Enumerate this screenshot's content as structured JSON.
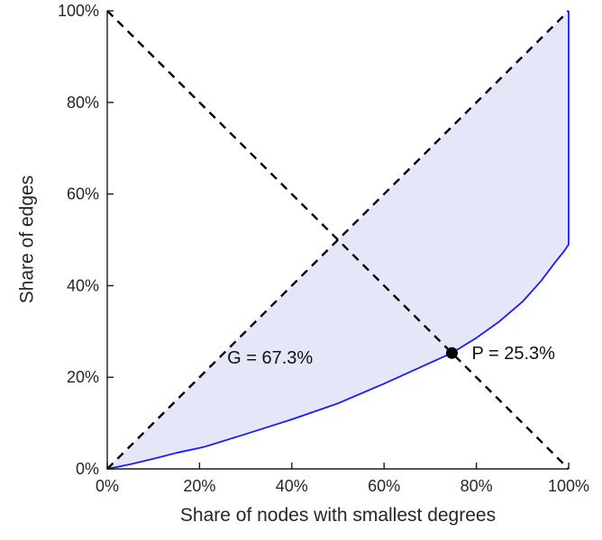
{
  "chart_data": {
    "type": "line",
    "title": "",
    "xlabel": "Share of nodes with smallest degrees",
    "ylabel": "Share of edges",
    "xlim": [
      0,
      100
    ],
    "ylim": [
      0,
      100
    ],
    "grid": false,
    "legend": "none",
    "x_ticks": [
      0,
      20,
      40,
      60,
      80,
      100
    ],
    "y_ticks": [
      0,
      20,
      40,
      60,
      80,
      100
    ],
    "x_tick_labels": [
      "0%",
      "20%",
      "40%",
      "60%",
      "80%",
      "100%"
    ],
    "y_tick_labels": [
      "0%",
      "20%",
      "40%",
      "60%",
      "80%",
      "100%"
    ],
    "colors": {
      "curve": "#1a1aff",
      "fill": "#e6e6f9",
      "dashed": "#000000",
      "axis": "#1a1a1a",
      "tick_text": "#262626",
      "marker": "#000000"
    },
    "series": [
      {
        "name": "equality-diagonal",
        "style": "dashed",
        "color": "#000000",
        "points": [
          [
            0,
            0
          ],
          [
            100,
            100
          ]
        ]
      },
      {
        "name": "anti-diagonal",
        "style": "dashed",
        "color": "#000000",
        "points": [
          [
            0,
            100
          ],
          [
            100,
            0
          ]
        ]
      },
      {
        "name": "lorenz-curve",
        "style": "solid",
        "color": "#1a1aff",
        "points": [
          [
            0,
            0
          ],
          [
            5,
            1.0
          ],
          [
            10,
            2.2
          ],
          [
            15,
            3.5
          ],
          [
            21,
            4.8
          ],
          [
            22,
            5.1
          ],
          [
            30,
            7.6
          ],
          [
            40,
            10.8
          ],
          [
            50,
            14.3
          ],
          [
            60,
            18.6
          ],
          [
            67,
            21.8
          ],
          [
            74.7,
            25.3
          ],
          [
            80,
            28.6
          ],
          [
            85,
            32.2
          ],
          [
            90,
            36.5
          ],
          [
            94,
            41.0
          ],
          [
            97,
            45.0
          ],
          [
            99,
            47.5
          ],
          [
            100,
            49.0
          ],
          [
            100,
            100
          ]
        ]
      }
    ],
    "fill_between": {
      "upper": "equality-diagonal",
      "lower": "lorenz-curve",
      "color": "#e6e6f9"
    },
    "point_marker": {
      "x": 74.7,
      "y": 25.3,
      "radius": 6.5,
      "color": "#000000"
    },
    "annotations": [
      {
        "id": "gini",
        "text": "G = 67.3%",
        "x": 26,
        "y": 23,
        "anchor": "start"
      },
      {
        "id": "p-value",
        "text": "P = 25.3%",
        "x": 79,
        "y": 24,
        "anchor": "start"
      }
    ],
    "gini_value": "67.3%",
    "p_value": "25.3%"
  }
}
